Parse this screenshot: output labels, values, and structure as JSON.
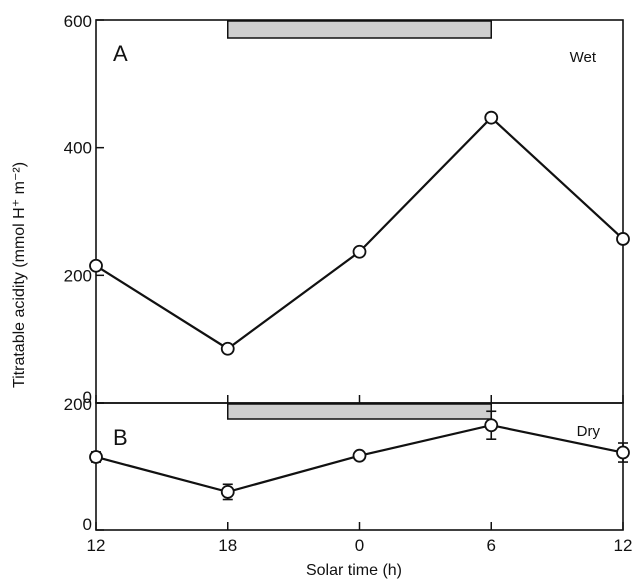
{
  "chart_data": {
    "type": "line",
    "xlabel": "Solar time  (h)",
    "ylabel": "Titratable acidity  (mmol H⁺ m⁻²)",
    "x_categories": [
      "12",
      "18",
      "0",
      "6",
      "12"
    ],
    "x": [
      12,
      18,
      24,
      30,
      36
    ],
    "dark_period": [
      18,
      30
    ],
    "grid": false,
    "panels": [
      {
        "letter": "A",
        "note": "Wet",
        "ylim": [
          0,
          600
        ],
        "yticks": [
          "0",
          "200",
          "400",
          "600"
        ],
        "ytick_values": [
          0,
          200,
          400,
          600
        ],
        "values": [
          215,
          85,
          237,
          447,
          257
        ]
      },
      {
        "letter": "B",
        "note": "Dry",
        "ylim": [
          0,
          200
        ],
        "yticks": [
          "0",
          "200"
        ],
        "ytick_values": [
          0,
          200
        ],
        "values": [
          115,
          60,
          117,
          165,
          122
        ],
        "error": [
          8,
          12,
          6,
          22,
          15
        ]
      }
    ]
  }
}
